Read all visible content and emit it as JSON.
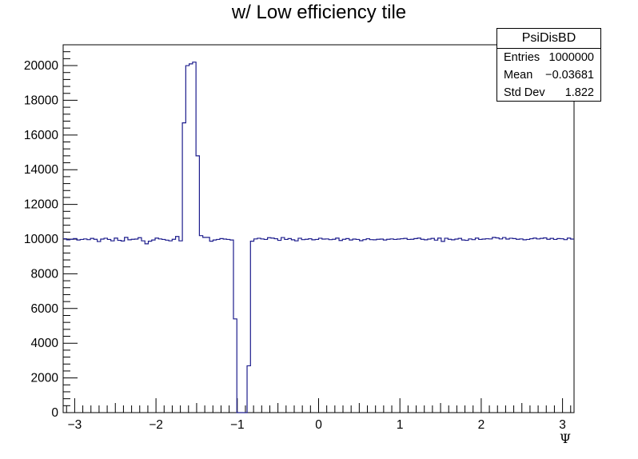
{
  "title": "w/ Low efficiency tile",
  "stats": {
    "name": "PsiDisBD",
    "rows": [
      {
        "label": "Entries",
        "value": "1000000"
      },
      {
        "label": "Mean",
        "value": "−0.03681"
      },
      {
        "label": "Std Dev",
        "value": "1.822"
      }
    ]
  },
  "colors": {
    "line": "#1c1c8c",
    "axis": "#000000",
    "frame_bg": "#ffffff"
  },
  "chart_data": {
    "type": "histogram",
    "title": "w/ Low efficiency tile",
    "xlabel": "Ψ",
    "ylabel": "",
    "xlim": [
      -3.1416,
      3.1416
    ],
    "ylim": [
      0,
      21200
    ],
    "bin_width": 0.0628,
    "bin_edges_start": -3.1416,
    "x_ticks": [
      {
        "value": -3,
        "label": "−3"
      },
      {
        "value": -2,
        "label": "−2"
      },
      {
        "value": -1,
        "label": "−1"
      },
      {
        "value": 0,
        "label": "0"
      },
      {
        "value": 1,
        "label": "1"
      },
      {
        "value": 2,
        "label": "2"
      },
      {
        "value": 3,
        "label": "3"
      }
    ],
    "y_ticks": [
      {
        "value": 0,
        "label": "0"
      },
      {
        "value": 2000,
        "label": "2000"
      },
      {
        "value": 4000,
        "label": "4000"
      },
      {
        "value": 6000,
        "label": "6000"
      },
      {
        "value": 8000,
        "label": "8000"
      },
      {
        "value": 10000,
        "label": "10000"
      },
      {
        "value": 12000,
        "label": "12000"
      },
      {
        "value": 14000,
        "label": "14000"
      },
      {
        "value": 16000,
        "label": "16000"
      },
      {
        "value": 18000,
        "label": "18000"
      },
      {
        "value": 20000,
        "label": "20000"
      }
    ],
    "values": [
      10020,
      9960,
      9990,
      10030,
      9950,
      9980,
      10010,
      9970,
      10040,
      9990,
      9860,
      10000,
      10050,
      9980,
      9900,
      10060,
      9930,
      9890,
      10100,
      9960,
      9990,
      10000,
      10080,
      9900,
      9730,
      9880,
      9950,
      10060,
      10010,
      9980,
      9940,
      9900,
      9990,
      10150,
      9900,
      16700,
      20000,
      20100,
      20200,
      14800,
      10200,
      10100,
      10100,
      9880,
      9950,
      9980,
      10030,
      10000,
      9980,
      9950,
      5400,
      0,
      0,
      0,
      2700,
      9880,
      10010,
      10050,
      10010,
      9980,
      10080,
      10060,
      10020,
      9930,
      10090,
      9980,
      10030,
      9960,
      9900,
      10050,
      9970,
      9990,
      10020,
      9960,
      9980,
      10050,
      10000,
      10010,
      9970,
      9990,
      10060,
      9920,
      9990,
      10030,
      9950,
      10000,
      9980,
      9910,
      9970,
      10020,
      9970,
      9960,
      9990,
      10000,
      9950,
      9990,
      10010,
      9980,
      10000,
      10020,
      10040,
      9980,
      9990,
      10030,
      10060,
      9990,
      9960,
      10000,
      10040,
      9940,
      10060,
      9870,
      10050,
      9990,
      9960,
      10000,
      10040,
      9950,
      9930,
      10010,
      9970,
      10060,
      9980,
      10000,
      10020,
      10010,
      10100,
      10070,
      10010,
      10090,
      10000,
      10050,
      10030,
      9990,
      10010,
      9960,
      9980,
      10020,
      10060,
      10010,
      10040,
      10070,
      9990,
      10040,
      9980,
      10030,
      10020,
      9970,
      10060,
      10000
    ]
  }
}
